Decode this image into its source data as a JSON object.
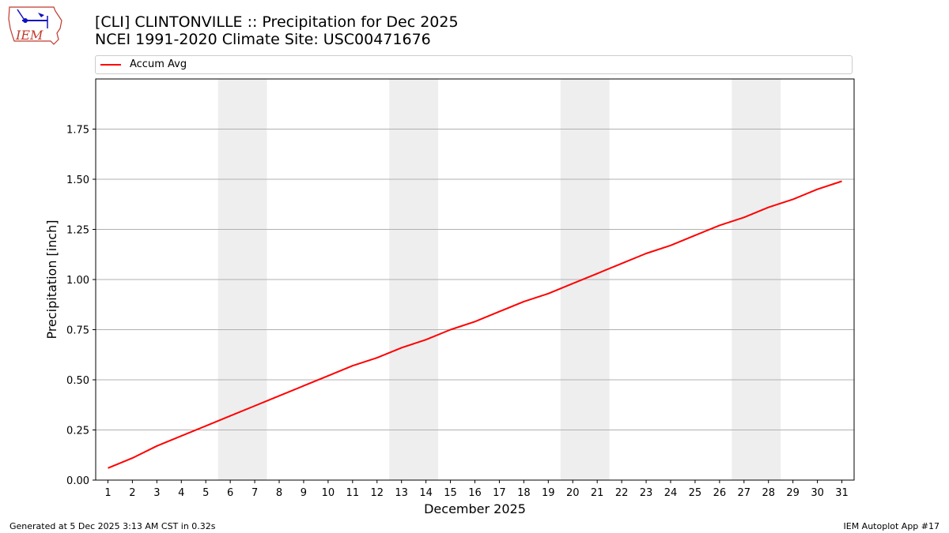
{
  "header": {
    "title_line1": "[CLI] CLINTONVILLE :: Precipitation for Dec 2025",
    "title_line2": "NCEI 1991-2020 Climate Site: USC00471676"
  },
  "logo": {
    "text": "IEM",
    "icon": "iem-logo-icon"
  },
  "footer": {
    "generated": "Generated at 5 Dec 2025 3:13 AM CST in 0.32s",
    "app": "IEM Autoplot App #17"
  },
  "colors": {
    "series": "#ff0000",
    "weekend": "#eeeeee",
    "grid": "#b0b0b0"
  },
  "chart_data": {
    "type": "line",
    "title": "[CLI] CLINTONVILLE :: Precipitation for Dec 2025",
    "subtitle": "NCEI 1991-2020 Climate Site: USC00471676",
    "xlabel": "December 2025",
    "ylabel": "Precipitation [inch]",
    "x": [
      1,
      2,
      3,
      4,
      5,
      6,
      7,
      8,
      9,
      10,
      11,
      12,
      13,
      14,
      15,
      16,
      17,
      18,
      19,
      20,
      21,
      22,
      23,
      24,
      25,
      26,
      27,
      28,
      29,
      30,
      31
    ],
    "xlim": [
      0.5,
      31.5
    ],
    "ylim": [
      0,
      2.0
    ],
    "yticks": [
      "0.00",
      "0.25",
      "0.50",
      "0.75",
      "1.00",
      "1.25",
      "1.50",
      "1.75"
    ],
    "grid": "horizontal",
    "legend": "top",
    "shaded_days": [
      [
        6,
        7
      ],
      [
        13,
        14
      ],
      [
        20,
        21
      ],
      [
        27,
        28
      ]
    ],
    "series": [
      {
        "name": "Accum Avg",
        "values": [
          0.06,
          0.11,
          0.17,
          0.22,
          0.27,
          0.32,
          0.37,
          0.42,
          0.47,
          0.52,
          0.57,
          0.61,
          0.66,
          0.7,
          0.75,
          0.79,
          0.84,
          0.89,
          0.93,
          0.98,
          1.03,
          1.08,
          1.13,
          1.17,
          1.22,
          1.27,
          1.31,
          1.36,
          1.4,
          1.45,
          1.49
        ]
      }
    ]
  }
}
